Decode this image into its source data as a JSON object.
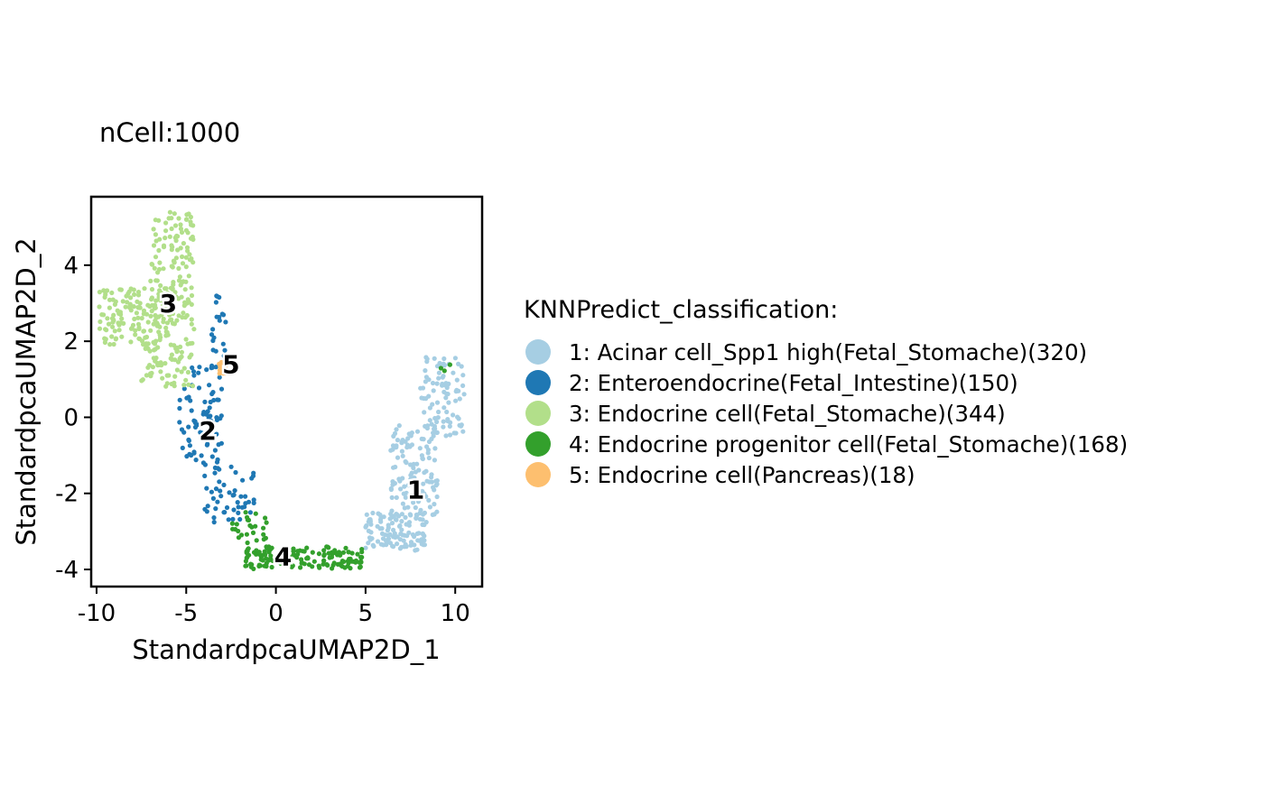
{
  "chart_data": {
    "type": "scatter",
    "subtitle": "nCell:1000",
    "xlabel": "StandardpcaUMAP2D_1",
    "ylabel": "StandardpcaUMAP2D_2",
    "xlim": [
      -10.3,
      11.5
    ],
    "ylim": [
      -4.45,
      5.8
    ],
    "x_ticks": [
      -10,
      -5,
      0,
      5,
      10
    ],
    "x_tick_labels": [
      "-10",
      "-5",
      "0",
      "5",
      "10"
    ],
    "y_ticks": [
      -4,
      -2,
      0,
      2,
      4
    ],
    "y_tick_labels": [
      "-4",
      "-2",
      "0",
      "2",
      "4"
    ],
    "grid": false,
    "legend": {
      "title": "KNNPredict_classification:",
      "placement": "right"
    },
    "series": [
      {
        "name": "1: Acinar cell_Spp1 high(Fetal_Stomache)(320)",
        "cluster_label": "1",
        "color": "#A6CEE3",
        "label_pos": [
          7.8,
          -1.9
        ],
        "regions": [
          {
            "x": [
              8.0,
              10.5
            ],
            "y": [
              -0.5,
              1.6
            ],
            "n": 90
          },
          {
            "x": [
              6.4,
              9.0
            ],
            "y": [
              -2.6,
              -0.2
            ],
            "n": 120
          },
          {
            "x": [
              5.0,
              8.4
            ],
            "y": [
              -3.5,
              -2.5
            ],
            "n": 110
          }
        ]
      },
      {
        "name": "2: Enteroendocrine(Fetal_Intestine)(150)",
        "cluster_label": "2",
        "color": "#1F78B4",
        "label_pos": [
          -3.8,
          -0.35
        ],
        "regions": [
          {
            "x": [
              -5.4,
              -3.0
            ],
            "y": [
              -1.2,
              1.4
            ],
            "n": 80
          },
          {
            "x": [
              -4.0,
              -1.2
            ],
            "y": [
              -2.8,
              -1.2
            ],
            "n": 50
          },
          {
            "x": [
              -3.6,
              -2.8
            ],
            "y": [
              1.4,
              3.2
            ],
            "n": 20
          }
        ]
      },
      {
        "name": "3: Endocrine cell(Fetal_Stomache)(344)",
        "cluster_label": "3",
        "color": "#B2DF8A",
        "label_pos": [
          -6.0,
          3.0
        ],
        "regions": [
          {
            "x": [
              -9.9,
              -6.0
            ],
            "y": [
              1.9,
              3.4
            ],
            "n": 130
          },
          {
            "x": [
              -7.0,
              -4.6
            ],
            "y": [
              2.4,
              5.4
            ],
            "n": 140
          },
          {
            "x": [
              -7.5,
              -4.5
            ],
            "y": [
              0.8,
              2.4
            ],
            "n": 74
          }
        ]
      },
      {
        "name": "4: Endocrine progenitor cell(Fetal_Stomache)(168)",
        "cluster_label": "4",
        "color": "#33A02C",
        "label_pos": [
          0.4,
          -3.65
        ],
        "regions": [
          {
            "x": [
              -1.8,
              4.8
            ],
            "y": [
              -4.0,
              -3.4
            ],
            "n": 140
          },
          {
            "x": [
              -2.5,
              -0.5
            ],
            "y": [
              -3.3,
              -2.4
            ],
            "n": 25
          },
          {
            "x": [
              9.2,
              9.9
            ],
            "y": [
              1.2,
              1.8
            ],
            "n": 3
          }
        ]
      },
      {
        "name": "5: Endocrine cell(Pancreas)(18)",
        "cluster_label": "5",
        "color": "#FDBF6F",
        "label_pos": [
          -2.5,
          1.4
        ],
        "regions": [
          {
            "x": [
              -3.25,
              -2.75
            ],
            "y": [
              1.15,
              1.45
            ],
            "n": 18
          }
        ]
      }
    ]
  }
}
